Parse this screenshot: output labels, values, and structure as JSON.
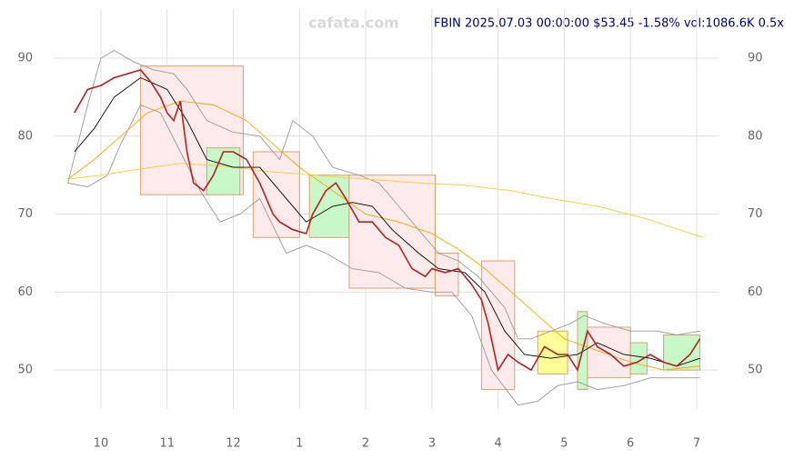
{
  "chart_data": {
    "type": "line",
    "title": "FBIN 2025.07.03 00:00:00 $53.45 -1.58% vol:1086.6K 0.5x",
    "watermark": "cafata.com",
    "xlim": [
      9.3,
      19.33
    ],
    "ylim": [
      45,
      96.3
    ],
    "xticks": [
      {
        "value": 10,
        "label": "10"
      },
      {
        "value": 11,
        "label": "11"
      },
      {
        "value": 12,
        "label": "12"
      },
      {
        "value": 13,
        "label": "1"
      },
      {
        "value": 14,
        "label": "2"
      },
      {
        "value": 15,
        "label": "3"
      },
      {
        "value": 16,
        "label": "4"
      },
      {
        "value": 17,
        "label": "5"
      },
      {
        "value": 18,
        "label": "6"
      },
      {
        "value": 19,
        "label": "7"
      }
    ],
    "yticks": [
      50,
      60,
      70,
      80,
      90
    ],
    "grid": true,
    "boxes": [
      {
        "x": [
          10.6,
          12.15
        ],
        "y": [
          72.5,
          89
        ],
        "color": "#fdeaea"
      },
      {
        "x": [
          11.6,
          12.1
        ],
        "y": [
          72.5,
          78.5
        ],
        "color": "#c8f7c8"
      },
      {
        "x": [
          12.3,
          13.0
        ],
        "y": [
          67,
          78
        ],
        "color": "#fdeaea"
      },
      {
        "x": [
          13.15,
          13.75
        ],
        "y": [
          67,
          75
        ],
        "color": "#c8f7c8"
      },
      {
        "x": [
          13.75,
          15.05
        ],
        "y": [
          60.5,
          75
        ],
        "color": "#fdeaea"
      },
      {
        "x": [
          15.05,
          15.4
        ],
        "y": [
          59.5,
          65
        ],
        "color": "#fdeaea"
      },
      {
        "x": [
          15.75,
          16.25
        ],
        "y": [
          47.5,
          64
        ],
        "color": "#fdeaea"
      },
      {
        "x": [
          16.6,
          17.05
        ],
        "y": [
          49.5,
          55
        ],
        "color": "#ffff99"
      },
      {
        "x": [
          17.2,
          17.35
        ],
        "y": [
          47.5,
          57.5
        ],
        "color": "#c8f7c8"
      },
      {
        "x": [
          17.35,
          18.0
        ],
        "y": [
          49,
          55.5
        ],
        "color": "#fdeaea"
      },
      {
        "x": [
          18.0,
          18.25
        ],
        "y": [
          49.5,
          53.5
        ],
        "color": "#c8f7c8"
      },
      {
        "x": [
          18.5,
          19.05
        ],
        "y": [
          50,
          54.5
        ],
        "color": "#c8f7c8"
      }
    ],
    "series": [
      {
        "color": "#999999",
        "x": [
          9.5,
          9.8,
          10.0,
          10.2,
          10.5,
          10.8,
          11.1,
          11.3,
          11.6,
          12.0,
          12.4,
          12.7,
          12.9,
          13.2,
          13.5,
          13.9,
          14.2,
          14.5,
          14.8,
          15.1,
          15.4,
          15.7,
          16.1,
          16.3,
          16.5,
          16.8,
          17.1,
          17.3,
          17.6,
          18.0,
          18.4,
          18.7,
          19.05
        ],
        "values": [
          74,
          84,
          90,
          91,
          89.5,
          88.5,
          88,
          86,
          82,
          80.5,
          80,
          77,
          82,
          80,
          76,
          75,
          74,
          71,
          68,
          65,
          64,
          62,
          58,
          54,
          54,
          55,
          56,
          57,
          56,
          55,
          55,
          54.5,
          55
        ]
      },
      {
        "color": "#999999",
        "x": [
          9.5,
          9.8,
          10.1,
          10.3,
          10.6,
          10.9,
          11.2,
          11.5,
          11.8,
          12.1,
          12.4,
          12.8,
          13.1,
          13.4,
          13.8,
          14.2,
          14.6,
          15.0,
          15.3,
          15.6,
          15.9,
          16.3,
          16.6,
          16.9,
          17.2,
          17.5,
          17.9,
          18.3,
          18.7,
          19.05
        ],
        "values": [
          74,
          73.5,
          75,
          79,
          84,
          83,
          78,
          73,
          69,
          70,
          72,
          65,
          66,
          65,
          63,
          62.5,
          60.5,
          60,
          60,
          57,
          50,
          45.5,
          46,
          48,
          48.5,
          47.5,
          48,
          49,
          49,
          49
        ]
      },
      {
        "color": "#ffcc33",
        "x": [
          9.5,
          10.0,
          10.6,
          11.2,
          11.8,
          12.5,
          13.2,
          14.0,
          14.8,
          15.5,
          16.2,
          16.8,
          17.5,
          18.2,
          19.1
        ],
        "values": [
          74.5,
          75,
          75.8,
          76.5,
          76.2,
          75.5,
          75,
          74.5,
          74,
          73.7,
          73,
          72,
          71,
          69.5,
          67
        ]
      },
      {
        "color": "#ffa500",
        "x": [
          9.5,
          9.9,
          10.3,
          10.7,
          11.2,
          11.7,
          12.2,
          12.6,
          13.0,
          13.5,
          14.0,
          14.5,
          15.0,
          15.4,
          15.8,
          16.2,
          16.6,
          17.0,
          17.5,
          18.0,
          18.5,
          19.05
        ],
        "values": [
          74.5,
          77,
          80,
          83,
          84.5,
          84,
          82,
          79,
          76,
          73,
          70,
          69,
          67.5,
          65.5,
          63,
          60,
          57,
          54,
          52.5,
          51,
          50,
          50.5
        ]
      },
      {
        "color": "#000000",
        "x": [
          9.6,
          9.9,
          10.2,
          10.6,
          11.0,
          11.3,
          11.6,
          12.0,
          12.4,
          12.8,
          13.1,
          13.5,
          13.8,
          14.1,
          14.4,
          14.8,
          15.1,
          15.5,
          15.8,
          16.1,
          16.4,
          16.8,
          17.2,
          17.5,
          17.9,
          18.3,
          18.7,
          19.05
        ],
        "values": [
          78,
          81,
          85,
          87.5,
          86,
          82,
          77,
          76,
          76,
          72,
          69,
          71,
          71.5,
          71,
          68,
          65,
          63,
          62.5,
          60,
          55,
          52,
          51.5,
          52,
          53.5,
          52,
          51.5,
          50.5,
          51.5
        ]
      },
      {
        "color": "#b22222",
        "x": [
          9.6,
          9.8,
          10.0,
          10.2,
          10.4,
          10.6,
          10.75,
          10.9,
          11.0,
          11.1,
          11.2,
          11.3,
          11.4,
          11.55,
          11.7,
          11.85,
          12.0,
          12.2,
          12.4,
          12.6,
          12.7,
          12.9,
          13.1,
          13.2,
          13.4,
          13.55,
          13.7,
          13.9,
          14.1,
          14.3,
          14.5,
          14.7,
          14.9,
          15.0,
          15.2,
          15.4,
          15.6,
          15.75,
          15.85,
          16.0,
          16.15,
          16.3,
          16.5,
          16.7,
          16.9,
          17.05,
          17.2,
          17.35,
          17.5,
          17.7,
          17.9,
          18.1,
          18.3,
          18.5,
          18.7,
          18.9,
          19.05
        ],
        "values": [
          83,
          86,
          86.5,
          87.5,
          88,
          88.5,
          87,
          85,
          83,
          82,
          84.5,
          78,
          74,
          73,
          75,
          78,
          78,
          77,
          74,
          70,
          69,
          68,
          67.5,
          70,
          73,
          74,
          72,
          69,
          69,
          67,
          66,
          63,
          62,
          63,
          62.5,
          63,
          61,
          59,
          56,
          50,
          52,
          51,
          50,
          53,
          52,
          52,
          50,
          55,
          53,
          52,
          50.5,
          51,
          52,
          51,
          50.5,
          52,
          54
        ]
      }
    ]
  }
}
